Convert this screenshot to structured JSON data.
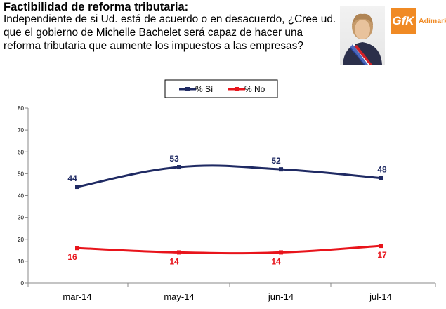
{
  "header": {
    "title": "Factibilidad de reforma tributaria:",
    "question": "Independiente de si Ud. está de acuerdo o en desacuerdo, ¿Cree ud. que el gobierno de Michelle Bachelet será capaz de hacer una reforma tributaria que aumente los impuestos a las empresas?"
  },
  "logo": {
    "mark": "GfK",
    "name": "Adimark",
    "color": "#f08a24"
  },
  "colors": {
    "si": "#1f2a63",
    "no": "#e8141b"
  },
  "chart_data": {
    "type": "line",
    "categories": [
      "mar-14",
      "may-14",
      "jun-14",
      "jul-14"
    ],
    "series": [
      {
        "name": "% Sí",
        "values": [
          44,
          53,
          52,
          48
        ],
        "color": "#1f2a63"
      },
      {
        "name": "% No",
        "values": [
          16,
          14,
          14,
          17
        ],
        "color": "#e8141b"
      }
    ],
    "ylim": [
      0,
      80
    ],
    "yticks": [
      0,
      10,
      20,
      30,
      40,
      50,
      60,
      70,
      80
    ],
    "grid": false,
    "legend": "top-center",
    "title": "",
    "xlabel": "",
    "ylabel": ""
  }
}
